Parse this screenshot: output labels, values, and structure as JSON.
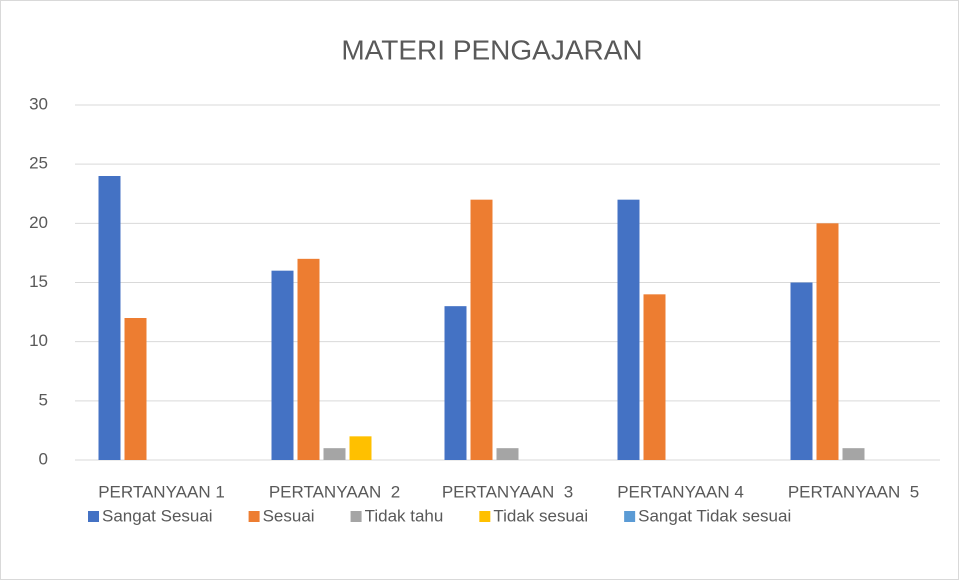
{
  "chart_data": {
    "type": "bar",
    "title": "MATERI PENGAJARAN",
    "categories": [
      "PERTANYAAN 1",
      "PERTANYAAN  2",
      "PERTANYAAN  3",
      "PERTANYAAN 4",
      "PERTANYAAN  5"
    ],
    "series": [
      {
        "name": "Sangat Sesuai",
        "color": "#4472c4",
        "values": [
          24,
          16,
          13,
          22,
          15
        ]
      },
      {
        "name": "Sesuai",
        "color": "#ed7d31",
        "values": [
          12,
          17,
          22,
          14,
          20
        ]
      },
      {
        "name": "Tidak tahu",
        "color": "#a5a5a5",
        "values": [
          0,
          1,
          1,
          0,
          1
        ]
      },
      {
        "name": "Tidak sesuai",
        "color": "#ffc000",
        "values": [
          0,
          2,
          0,
          0,
          0
        ]
      },
      {
        "name": "Sangat Tidak sesuai",
        "color": "#5b9bd5",
        "values": [
          0,
          0,
          0,
          0,
          0
        ]
      }
    ],
    "ylim": [
      0,
      30
    ],
    "yticks": [
      0,
      5,
      10,
      15,
      20,
      25,
      30
    ],
    "grid": true,
    "legend": "bottom"
  }
}
